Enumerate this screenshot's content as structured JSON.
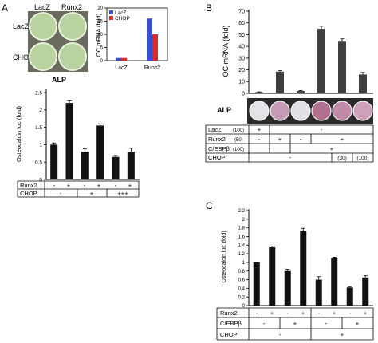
{
  "panel_labels": {
    "a": "A",
    "b": "B",
    "c": "C"
  },
  "panelA": {
    "plate_cols": [
      "LacZ",
      "Runx2"
    ],
    "plate_rows": [
      "LacZ",
      "CHOP"
    ],
    "plate_caption": "ALP",
    "legend": [
      "LacZ",
      "CHOP"
    ],
    "colors": {
      "lacz": "#3a4ed0",
      "chop": "#e02828",
      "plate": "#b9d3a0"
    },
    "cond_rows": [
      {
        "label": "Runx2",
        "cells": [
          "-",
          "+",
          "-",
          "+",
          "-",
          "+"
        ]
      },
      {
        "label": "CHOP",
        "groups": [
          "-",
          "+",
          "+++"
        ]
      }
    ]
  },
  "panelB": {
    "alp_label": "ALP",
    "well_colors": [
      "#e4e4e8",
      "#c79ab5",
      "#e0e0e6",
      "#b27091",
      "#c18aa8",
      "#cfa0ba"
    ],
    "cond_rows": [
      {
        "label": "LacZ",
        "dose": "(100)",
        "cells": [
          "+",
          "-"
        ]
      },
      {
        "label": "Runx2",
        "dose": "(50)",
        "cells": [
          "-",
          "+",
          "-",
          "+"
        ]
      },
      {
        "label": "C/EBPβ",
        "dose": "(100)",
        "cells": [
          "-",
          "+"
        ]
      },
      {
        "label": "CHOP",
        "cells": [
          "-",
          "(30)",
          "(100)"
        ]
      }
    ]
  },
  "panelC": {
    "cond_rows": [
      {
        "label": "Runx2",
        "cells": [
          "-",
          "+",
          "-",
          "+",
          "-",
          "+",
          "-",
          "+"
        ]
      },
      {
        "label": "C/EBPβ",
        "cells": [
          "-",
          "+",
          "-",
          "+"
        ]
      },
      {
        "label": "CHOP",
        "cells": [
          "-",
          "+"
        ]
      }
    ]
  },
  "chart_data": [
    {
      "id": "A-top",
      "type": "bar",
      "ylabel": "OC mRNA (fold)",
      "categories": [
        "LacZ",
        "Runx2"
      ],
      "series": [
        {
          "name": "LacZ",
          "values": [
            1,
            16
          ]
        },
        {
          "name": "CHOP",
          "values": [
            1,
            10
          ]
        }
      ],
      "ylim": [
        0,
        20
      ],
      "yticks": [
        "0",
        "5",
        "10",
        "15",
        "20"
      ],
      "legend": "top-left"
    },
    {
      "id": "A-bottom",
      "type": "bar",
      "ylabel": "Osteocalcin luc (fold)",
      "values": [
        1.0,
        2.2,
        0.8,
        1.55,
        0.65,
        0.8
      ],
      "errors": [
        0.05,
        0.08,
        0.08,
        0.05,
        0.04,
        0.1
      ],
      "ylim": [
        0,
        2.5
      ],
      "yticks": [
        "0",
        "0.5",
        "1",
        "1.5",
        "2",
        "2.5"
      ]
    },
    {
      "id": "B",
      "type": "bar",
      "ylabel": "OC mRNA (fold)",
      "values": [
        1,
        18.5,
        2,
        55,
        44,
        16
      ],
      "errors": [
        0.3,
        0.8,
        0.4,
        2.2,
        2.4,
        1.8
      ],
      "ylim": [
        0,
        70
      ],
      "yticks": [
        "0",
        "10",
        "20",
        "30",
        "40",
        "50",
        "60",
        "70"
      ]
    },
    {
      "id": "C",
      "type": "bar",
      "ylabel": "Osteocalcin luc (fold)",
      "values": [
        1.0,
        1.35,
        0.8,
        1.72,
        0.6,
        1.1,
        0.42,
        0.65
      ],
      "errors": [
        0.0,
        0.03,
        0.04,
        0.07,
        0.07,
        0.02,
        0.02,
        0.04
      ],
      "ylim": [
        0,
        2.2
      ],
      "yticks": [
        "0",
        "0.2",
        "0.4",
        "0.6",
        "0.8",
        "1",
        "1.2",
        "1.4",
        "1.6",
        "1.8",
        "2",
        "2.2"
      ]
    }
  ]
}
